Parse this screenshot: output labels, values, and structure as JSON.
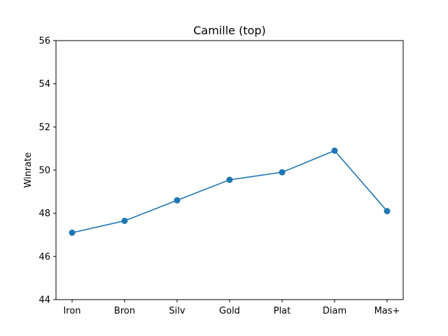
{
  "chart_data": {
    "type": "line",
    "title": "Camille (top)",
    "xlabel": "",
    "ylabel": "Winrate",
    "categories": [
      "Iron",
      "Bron",
      "Silv",
      "Gold",
      "Plat",
      "Diam",
      "Mas+"
    ],
    "series": [
      {
        "values": [
          47.1,
          47.65,
          48.6,
          49.55,
          49.9,
          50.9,
          48.1
        ],
        "color": "#1f77b4",
        "marker": "circle"
      }
    ],
    "ylim": [
      44,
      56
    ],
    "yticks": [
      44,
      46,
      48,
      50,
      52,
      54,
      56
    ],
    "grid": false,
    "legend": "none"
  }
}
